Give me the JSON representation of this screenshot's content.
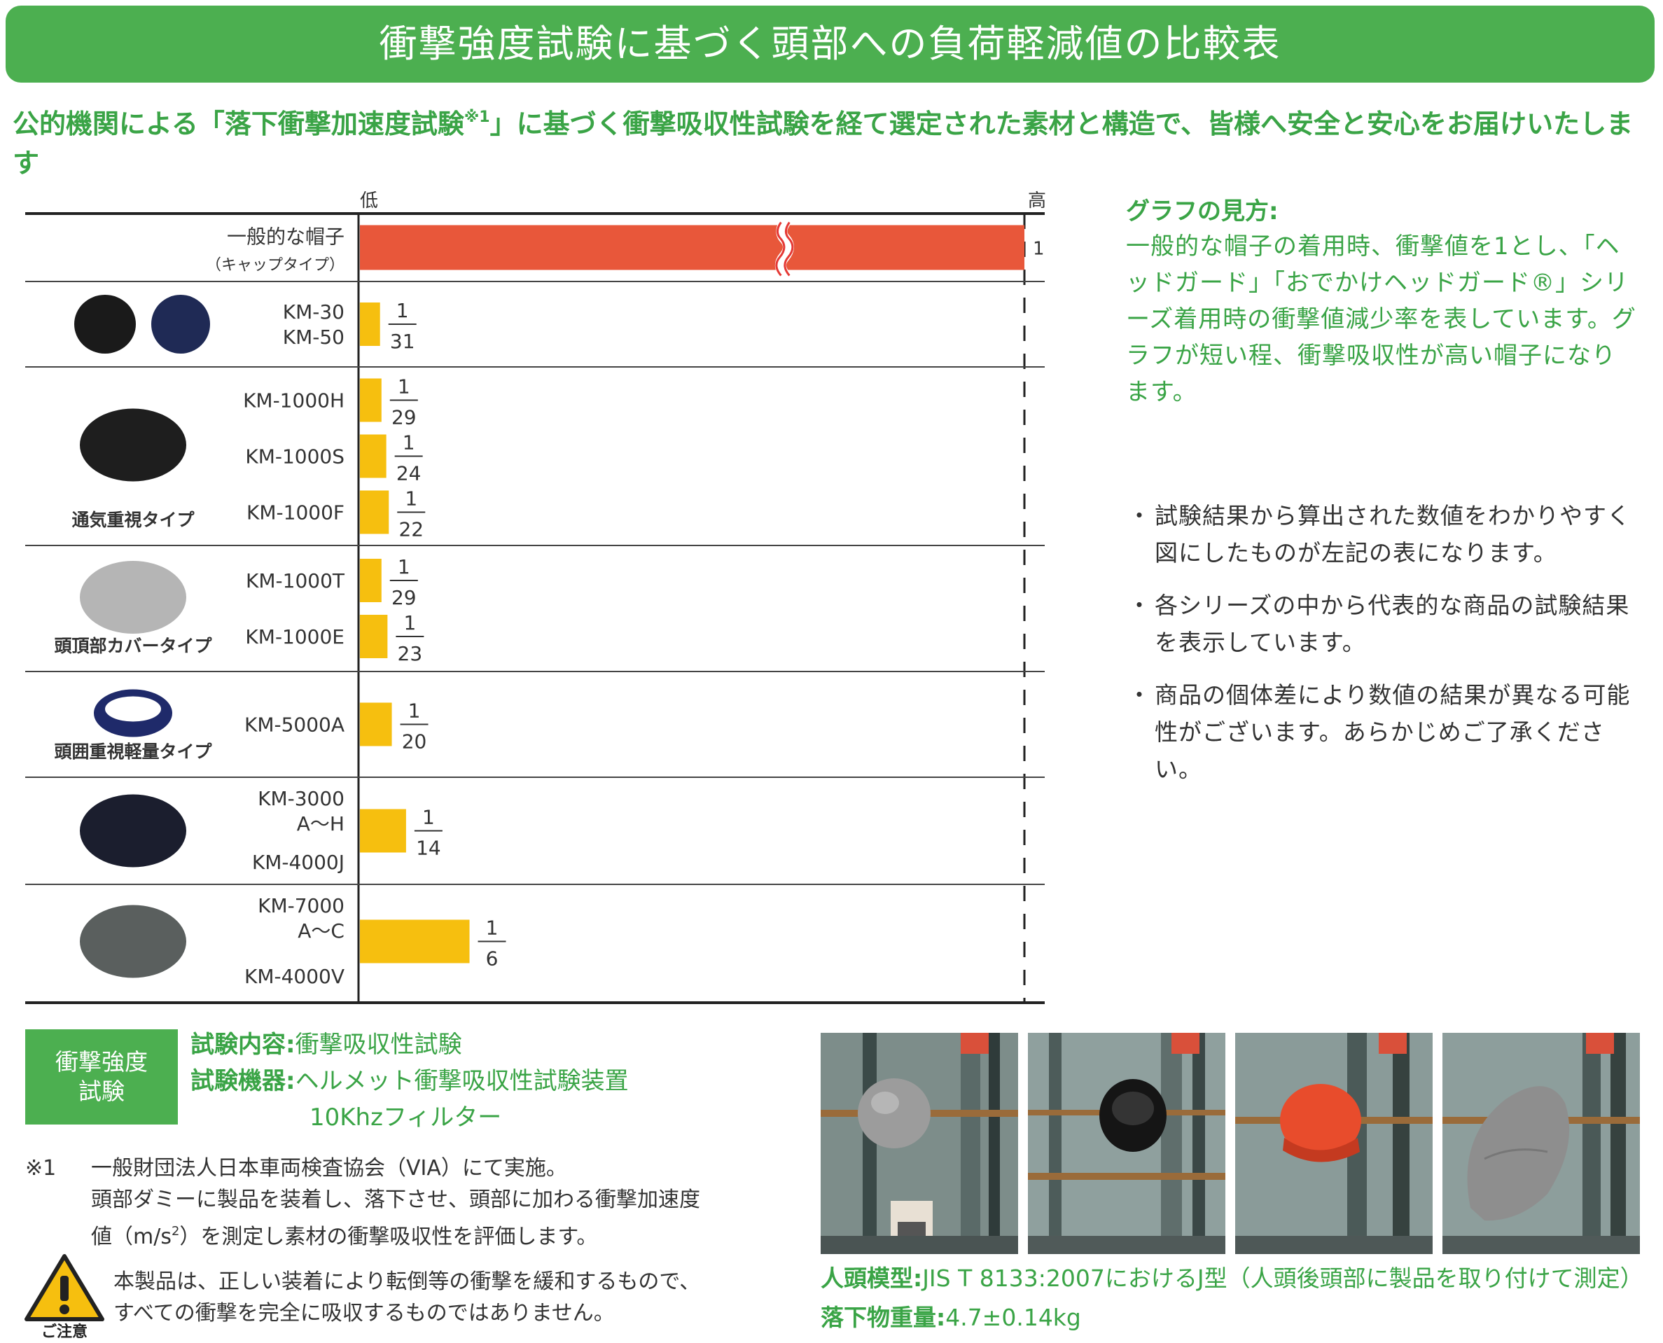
{
  "header": {
    "title": "衝撃強度試験に基づく頭部への負荷軽減値の比較表",
    "subtitle_before": "公的機関による「落下衝撃加速度試験",
    "subtitle_sup": "※1",
    "subtitle_after": "」に基づく衝撃吸収性試験を経て選定された素材と構造で、皆様へ安全と安心をお届けいたします"
  },
  "colors": {
    "accent_green": "#4caf50",
    "text_green": "#3aa446",
    "bar_reference": "#e8573a",
    "bar_product": "#f6bf0f"
  },
  "chart_data": {
    "type": "bar",
    "orientation": "horizontal",
    "axis_low_label": "低",
    "axis_high_label": "高",
    "xlim": [
      0,
      1
    ],
    "groups": [
      {
        "label": "",
        "bars": [
          {
            "name": "一般的な帽子",
            "subname": "（キャップタイプ）",
            "value": 1,
            "fraction_num": "",
            "fraction_den": "1",
            "broken": true
          }
        ]
      },
      {
        "label": "",
        "bars": [
          {
            "name": "KM-30\nKM-50",
            "value": 0.0323,
            "fraction_num": "1",
            "fraction_den": "31"
          }
        ]
      },
      {
        "label": "通気重視タイプ",
        "bars": [
          {
            "name": "KM-1000H",
            "value": 0.0345,
            "fraction_num": "1",
            "fraction_den": "29"
          },
          {
            "name": "KM-1000S",
            "value": 0.0417,
            "fraction_num": "1",
            "fraction_den": "24"
          },
          {
            "name": "KM-1000F",
            "value": 0.0455,
            "fraction_num": "1",
            "fraction_den": "22"
          }
        ]
      },
      {
        "label": "頭頂部カバータイプ",
        "bars": [
          {
            "name": "KM-1000T",
            "value": 0.0345,
            "fraction_num": "1",
            "fraction_den": "29"
          },
          {
            "name": "KM-1000E",
            "value": 0.0435,
            "fraction_num": "1",
            "fraction_den": "23"
          }
        ]
      },
      {
        "label": "頭囲重視軽量タイプ",
        "bars": [
          {
            "name": "KM-5000A",
            "value": 0.05,
            "fraction_num": "1",
            "fraction_den": "20"
          }
        ]
      },
      {
        "label": "",
        "bars": [
          {
            "name": "KM-3000\nA～H\nKM-4000J",
            "value": 0.0714,
            "fraction_num": "1",
            "fraction_den": "14"
          }
        ]
      },
      {
        "label": "",
        "bars": [
          {
            "name": "KM-7000\nA～C\nKM-4000V",
            "value": 0.1667,
            "fraction_num": "1",
            "fraction_den": "6"
          }
        ]
      }
    ]
  },
  "guide": {
    "heading": "グラフの見方:",
    "body": "一般的な帽子の着用時、衝撃値を1とし、「ヘッドガード」「おでかけヘッドガード®」シリーズ着用時の衝撃値減少率を表しています。グラフが短い程、衝撃吸収性が高い帽子になります。"
  },
  "notes": [
    "試験結果から算出された数値をわかりやすく図にしたものが左記の表になります。",
    "各シリーズの中から代表的な商品の試験結果を表示しています。",
    "商品の個体差により数値の結果が異なる可能性がございます。あらかじめご了承ください。"
  ],
  "note_bullet": "・",
  "test": {
    "box_line1": "衝撃強度",
    "box_line2": "試験",
    "content_label": "試験内容:",
    "content_value": "衝撃吸収性試験",
    "device_label": "試験機器:",
    "device_value": "ヘルメット衝撃吸収性試験装置",
    "device_value2": "10Khzフィルター"
  },
  "footnote": {
    "mark": "※1",
    "line1": "一般財団法人日本車両検査協会（VIA）にて実施。",
    "line2": "頭部ダミーに製品を装着し、落下させ、頭部に加わる衝撃加速度",
    "line3_before": "値（m/s",
    "line3_sup": "2",
    "line3_after": "）を測定し素材の衝撃吸収性を評価します。"
  },
  "caution": {
    "label": "ご注意",
    "line1": "本製品は、正しい装着により転倒等の衝撃を緩和するもので、",
    "line2": "すべての衝撃を完全に吸収するものではありません。"
  },
  "spec": {
    "head_label": "人頭模型:",
    "head_value": "JIS T 8133:2007におけるJ型（人頭後頭部に製品を取り付けて測定）",
    "weight_label": "落下物重量:",
    "weight_value": "4.7±0.14kg"
  }
}
